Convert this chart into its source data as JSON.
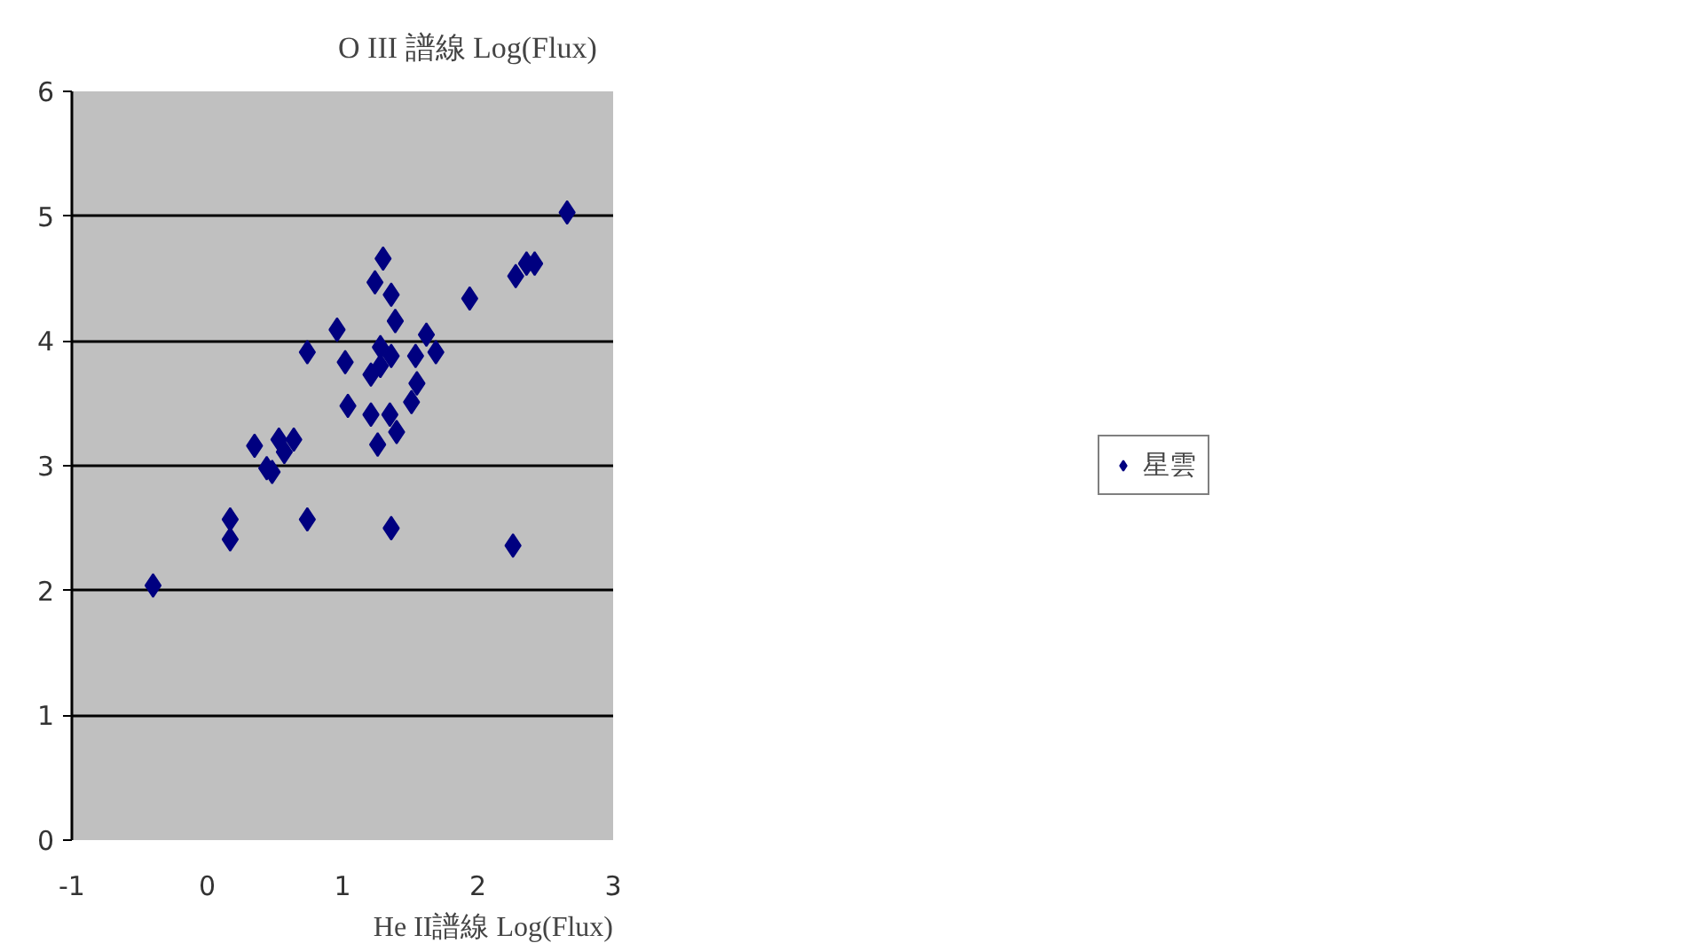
{
  "chart_data": {
    "type": "scatter",
    "xlabel": "He II譜線 Log(Flux)",
    "ylabel": "O III 譜線 Log(Flux)",
    "xlim": [
      -1,
      3
    ],
    "ylim": [
      0,
      6
    ],
    "xticks": [
      -1,
      0,
      1,
      2,
      3
    ],
    "yticks": [
      0,
      1,
      2,
      3,
      4,
      5,
      6
    ],
    "grid": "y",
    "legend": "right",
    "marker": "diamond",
    "series": [
      {
        "name": "星雲",
        "color": "#000080",
        "x": [
          -0.4,
          0.17,
          0.17,
          0.35,
          0.44,
          0.48,
          0.53,
          0.57,
          0.64,
          0.74,
          0.74,
          0.96,
          1.02,
          1.04,
          1.24,
          1.3,
          1.36,
          1.39,
          1.28,
          1.28,
          1.36,
          1.21,
          1.21,
          1.35,
          1.4,
          1.26,
          1.36,
          1.54,
          1.55,
          1.51,
          1.62,
          1.69,
          1.94,
          2.28,
          2.36,
          2.42,
          2.66,
          2.26
        ],
        "values": [
          2.04,
          2.57,
          2.41,
          3.16,
          2.98,
          2.95,
          3.21,
          3.11,
          3.21,
          3.91,
          2.57,
          4.09,
          3.83,
          3.48,
          4.47,
          4.66,
          4.37,
          4.16,
          3.95,
          3.8,
          3.88,
          3.73,
          3.41,
          3.41,
          3.27,
          3.17,
          2.5,
          3.88,
          3.66,
          3.51,
          4.05,
          3.91,
          4.34,
          4.52,
          4.62,
          4.62,
          5.03,
          2.36
        ]
      }
    ]
  }
}
